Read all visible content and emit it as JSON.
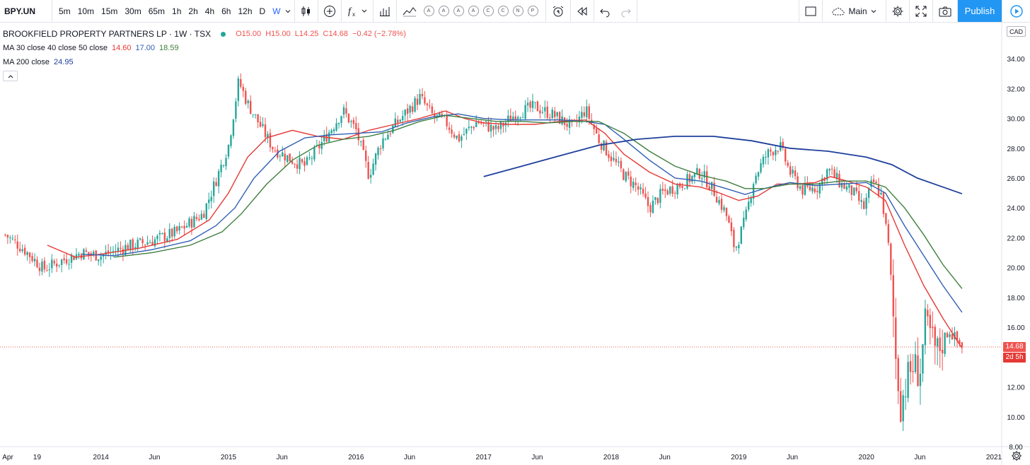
{
  "toolbar": {
    "symbol": "BPY.UN",
    "intervals": [
      "5m",
      "10m",
      "15m",
      "30m",
      "65m",
      "1h",
      "2h",
      "4h",
      "6h",
      "12h",
      "D",
      "W"
    ],
    "active_interval": "W",
    "indicator_letters": [
      "A",
      "A",
      "A",
      "A",
      "C",
      "C",
      "N",
      "P"
    ],
    "layout_name": "Main",
    "publish_label": "Publish"
  },
  "legend": {
    "title": "BROOKFIELD PROPERTY PARTNERS LP · 1W · TSX",
    "open": "O15.00",
    "high": "H15.00",
    "low": "L14.25",
    "close": "C14.68",
    "change": "−0.42 (−2.78%)",
    "ma_label": "MA 30 close 40 close 50 close",
    "ma30": "14.60",
    "ma40": "17.00",
    "ma50": "18.59",
    "ma200_label": "MA 200 close",
    "ma200": "24.95"
  },
  "price_axis": {
    "currency": "CAD",
    "last_price": "14.68",
    "countdown": "2d 5h"
  },
  "colors": {
    "up": "#26a69a",
    "down": "#ef5350",
    "ma30": "#e53935",
    "ma40": "#2e5fb3",
    "ma50": "#3f7f3f",
    "ma200": "#1e3f9c",
    "accent": "#2196f3"
  },
  "chart_data": {
    "type": "candlestick",
    "title": "BROOKFIELD PROPERTY PARTNERS LP · 1W · TSX",
    "ylim": [
      8,
      35
    ],
    "y_ticks": [
      "34.00",
      "32.00",
      "30.00",
      "28.00",
      "26.00",
      "24.00",
      "22.00",
      "20.00",
      "18.00",
      "16.00",
      "14.00",
      "12.00",
      "10.00",
      "8.00"
    ],
    "x_ticks": [
      "Apr",
      "19",
      "2014",
      "Jun",
      "2015",
      "Jun",
      "2016",
      "Jun",
      "2017",
      "Jun",
      "2018",
      "Jun",
      "2019",
      "Jun",
      "2020",
      "Jun",
      "2021"
    ],
    "price_path": [
      [
        2013.25,
        22.2
      ],
      [
        2013.4,
        21.2
      ],
      [
        2013.55,
        19.9
      ],
      [
        2013.7,
        20.5
      ],
      [
        2013.85,
        21.0
      ],
      [
        2014.0,
        20.8
      ],
      [
        2014.2,
        21.4
      ],
      [
        2014.4,
        21.8
      ],
      [
        2014.6,
        22.4
      ],
      [
        2014.8,
        23.6
      ],
      [
        2014.9,
        25.8
      ],
      [
        2015.0,
        28.2
      ],
      [
        2015.08,
        32.5
      ],
      [
        2015.15,
        31.0
      ],
      [
        2015.25,
        29.5
      ],
      [
        2015.35,
        28.0
      ],
      [
        2015.5,
        27.2
      ],
      [
        2015.6,
        26.8
      ],
      [
        2015.75,
        28.6
      ],
      [
        2015.9,
        30.5
      ],
      [
        2016.0,
        29.2
      ],
      [
        2016.1,
        26.2
      ],
      [
        2016.2,
        28.5
      ],
      [
        2016.35,
        30.0
      ],
      [
        2016.5,
        31.4
      ],
      [
        2016.6,
        30.2
      ],
      [
        2016.7,
        29.8
      ],
      [
        2016.8,
        28.6
      ],
      [
        2016.95,
        29.8
      ],
      [
        2017.1,
        29.2
      ],
      [
        2017.25,
        30.3
      ],
      [
        2017.4,
        30.8
      ],
      [
        2017.55,
        30.2
      ],
      [
        2017.7,
        29.4
      ],
      [
        2017.8,
        30.6
      ],
      [
        2017.9,
        28.6
      ],
      [
        2018.0,
        27.4
      ],
      [
        2018.1,
        26.2
      ],
      [
        2018.2,
        25.4
      ],
      [
        2018.3,
        24.0
      ],
      [
        2018.4,
        25.0
      ],
      [
        2018.55,
        25.6
      ],
      [
        2018.7,
        26.4
      ],
      [
        2018.8,
        25.2
      ],
      [
        2018.9,
        23.6
      ],
      [
        2018.97,
        21.2
      ],
      [
        2019.05,
        23.2
      ],
      [
        2019.12,
        26.0
      ],
      [
        2019.22,
        27.6
      ],
      [
        2019.32,
        28.2
      ],
      [
        2019.4,
        26.4
      ],
      [
        2019.5,
        25.2
      ],
      [
        2019.62,
        25.4
      ],
      [
        2019.7,
        26.6
      ],
      [
        2019.8,
        25.6
      ],
      [
        2019.9,
        25.0
      ],
      [
        2019.98,
        24.0
      ],
      [
        2020.05,
        25.8
      ],
      [
        2020.12,
        24.8
      ],
      [
        2020.18,
        21.0
      ],
      [
        2020.23,
        14.0
      ],
      [
        2020.27,
        10.8
      ],
      [
        2020.31,
        12.2
      ],
      [
        2020.36,
        13.4
      ],
      [
        2020.42,
        13.0
      ],
      [
        2020.46,
        16.0
      ],
      [
        2020.5,
        15.5
      ],
      [
        2020.55,
        14.2
      ],
      [
        2020.6,
        15.2
      ],
      [
        2020.65,
        15.8
      ],
      [
        2020.7,
        15.2
      ],
      [
        2020.75,
        14.68
      ]
    ],
    "series": [
      {
        "name": "MA 30 close",
        "last": 14.6,
        "points": [
          [
            2013.58,
            21.5
          ],
          [
            2013.8,
            20.7
          ],
          [
            2014.0,
            20.9
          ],
          [
            2014.3,
            21.3
          ],
          [
            2014.6,
            21.9
          ],
          [
            2014.85,
            23.2
          ],
          [
            2015.0,
            25.0
          ],
          [
            2015.15,
            27.4
          ],
          [
            2015.3,
            28.7
          ],
          [
            2015.5,
            29.2
          ],
          [
            2015.7,
            28.8
          ],
          [
            2015.9,
            28.6
          ],
          [
            2016.1,
            29.2
          ],
          [
            2016.3,
            29.6
          ],
          [
            2016.5,
            30.0
          ],
          [
            2016.7,
            30.5
          ],
          [
            2016.85,
            30.0
          ],
          [
            2017.0,
            29.7
          ],
          [
            2017.2,
            29.6
          ],
          [
            2017.4,
            29.6
          ],
          [
            2017.6,
            29.8
          ],
          [
            2017.8,
            29.9
          ],
          [
            2017.95,
            29.0
          ],
          [
            2018.1,
            27.6
          ],
          [
            2018.3,
            26.4
          ],
          [
            2018.5,
            25.6
          ],
          [
            2018.7,
            25.4
          ],
          [
            2018.85,
            25.0
          ],
          [
            2019.0,
            24.5
          ],
          [
            2019.15,
            24.8
          ],
          [
            2019.3,
            25.6
          ],
          [
            2019.45,
            25.6
          ],
          [
            2019.6,
            25.7
          ],
          [
            2019.72,
            26.1
          ],
          [
            2019.85,
            25.8
          ],
          [
            2020.0,
            25.4
          ],
          [
            2020.15,
            24.5
          ],
          [
            2020.3,
            21.5
          ],
          [
            2020.45,
            18.8
          ],
          [
            2020.6,
            16.6
          ],
          [
            2020.75,
            14.6
          ]
        ]
      },
      {
        "name": "MA 40 close",
        "last": 17.0,
        "points": [
          [
            2013.85,
            20.9
          ],
          [
            2014.1,
            20.8
          ],
          [
            2014.4,
            21.2
          ],
          [
            2014.7,
            21.8
          ],
          [
            2014.9,
            22.8
          ],
          [
            2015.05,
            24.0
          ],
          [
            2015.2,
            26.0
          ],
          [
            2015.4,
            27.8
          ],
          [
            2015.6,
            28.7
          ],
          [
            2015.8,
            28.9
          ],
          [
            2016.0,
            29.0
          ],
          [
            2016.2,
            29.1
          ],
          [
            2016.4,
            29.7
          ],
          [
            2016.6,
            30.1
          ],
          [
            2016.8,
            30.3
          ],
          [
            2017.0,
            30.0
          ],
          [
            2017.2,
            29.9
          ],
          [
            2017.4,
            29.9
          ],
          [
            2017.6,
            29.9
          ],
          [
            2017.8,
            29.8
          ],
          [
            2017.95,
            29.6
          ],
          [
            2018.1,
            28.6
          ],
          [
            2018.3,
            27.2
          ],
          [
            2018.5,
            26.0
          ],
          [
            2018.7,
            25.8
          ],
          [
            2018.9,
            25.3
          ],
          [
            2019.05,
            24.9
          ],
          [
            2019.2,
            25.3
          ],
          [
            2019.4,
            25.7
          ],
          [
            2019.6,
            25.5
          ],
          [
            2019.8,
            25.6
          ],
          [
            2020.0,
            25.7
          ],
          [
            2020.15,
            25.0
          ],
          [
            2020.3,
            22.8
          ],
          [
            2020.45,
            20.8
          ],
          [
            2020.6,
            18.8
          ],
          [
            2020.75,
            17.0
          ]
        ]
      },
      {
        "name": "MA 50 close",
        "last": 18.59,
        "points": [
          [
            2014.1,
            20.7
          ],
          [
            2014.4,
            21.0
          ],
          [
            2014.7,
            21.5
          ],
          [
            2014.95,
            22.4
          ],
          [
            2015.1,
            23.6
          ],
          [
            2015.3,
            25.6
          ],
          [
            2015.5,
            27.2
          ],
          [
            2015.7,
            28.2
          ],
          [
            2015.9,
            28.6
          ],
          [
            2016.1,
            28.8
          ],
          [
            2016.3,
            29.2
          ],
          [
            2016.5,
            29.8
          ],
          [
            2016.7,
            30.2
          ],
          [
            2016.9,
            30.0
          ],
          [
            2017.1,
            29.8
          ],
          [
            2017.3,
            29.8
          ],
          [
            2017.5,
            29.7
          ],
          [
            2017.7,
            29.8
          ],
          [
            2017.9,
            29.8
          ],
          [
            2018.1,
            29.0
          ],
          [
            2018.3,
            27.8
          ],
          [
            2018.5,
            26.8
          ],
          [
            2018.7,
            26.2
          ],
          [
            2018.9,
            25.8
          ],
          [
            2019.05,
            25.3
          ],
          [
            2019.2,
            25.3
          ],
          [
            2019.4,
            25.6
          ],
          [
            2019.6,
            25.6
          ],
          [
            2019.8,
            25.8
          ],
          [
            2020.0,
            25.8
          ],
          [
            2020.15,
            25.4
          ],
          [
            2020.3,
            24.0
          ],
          [
            2020.45,
            22.2
          ],
          [
            2020.6,
            20.2
          ],
          [
            2020.75,
            18.59
          ]
        ]
      },
      {
        "name": "MA 200 close",
        "last": 24.95,
        "points": [
          [
            2017.0,
            26.1
          ],
          [
            2017.3,
            26.8
          ],
          [
            2017.6,
            27.5
          ],
          [
            2017.9,
            28.2
          ],
          [
            2018.2,
            28.6
          ],
          [
            2018.5,
            28.8
          ],
          [
            2018.8,
            28.8
          ],
          [
            2019.1,
            28.5
          ],
          [
            2019.4,
            28.0
          ],
          [
            2019.7,
            27.8
          ],
          [
            2020.0,
            27.4
          ],
          [
            2020.2,
            26.9
          ],
          [
            2020.4,
            26.0
          ],
          [
            2020.6,
            25.4
          ],
          [
            2020.75,
            24.95
          ]
        ]
      }
    ]
  }
}
